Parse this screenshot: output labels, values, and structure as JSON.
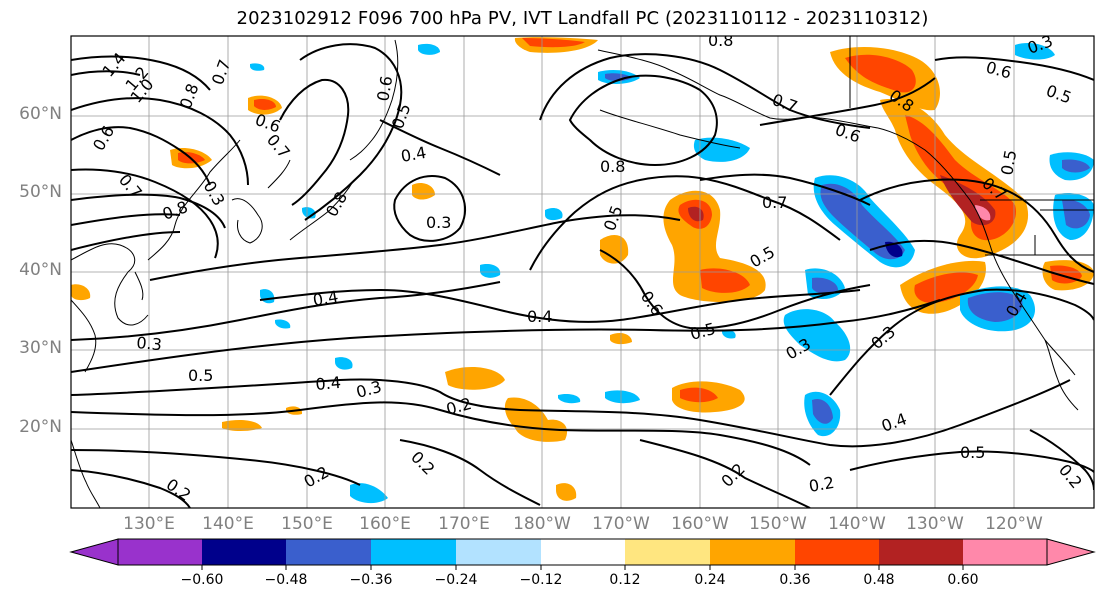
{
  "title": "2023102912 F096 700 hPa PV, IVT Landfall PC (2023110112 - 2023110312)",
  "lat_labels": [
    "60°N",
    "50°N",
    "40°N",
    "30°N",
    "20°N"
  ],
  "lon_labels": [
    "130°E",
    "140°E",
    "150°E",
    "160°E",
    "170°E",
    "180°W",
    "170°W",
    "160°W",
    "150°W",
    "140°W",
    "130°W",
    "120°W"
  ],
  "colorbar": {
    "ticks": [
      "−0.60",
      "−0.48",
      "−0.36",
      "−0.24",
      "−0.12",
      "0.12",
      "0.24",
      "0.36",
      "0.48",
      "0.60"
    ],
    "colors": [
      "#9932CC",
      "#00008B",
      "#3A5FCD",
      "#00BFFF",
      "#B2E2FF",
      "#FFFFFF",
      "#FFE680",
      "#FFA500",
      "#FF4500",
      "#B22222",
      "#FF88AA"
    ]
  },
  "contour_labels": [
    "1.4",
    "1.2",
    "1.0",
    "0.8",
    "0.7",
    "0.6",
    "0.5",
    "0.4",
    "0.3",
    "0.2"
  ]
}
